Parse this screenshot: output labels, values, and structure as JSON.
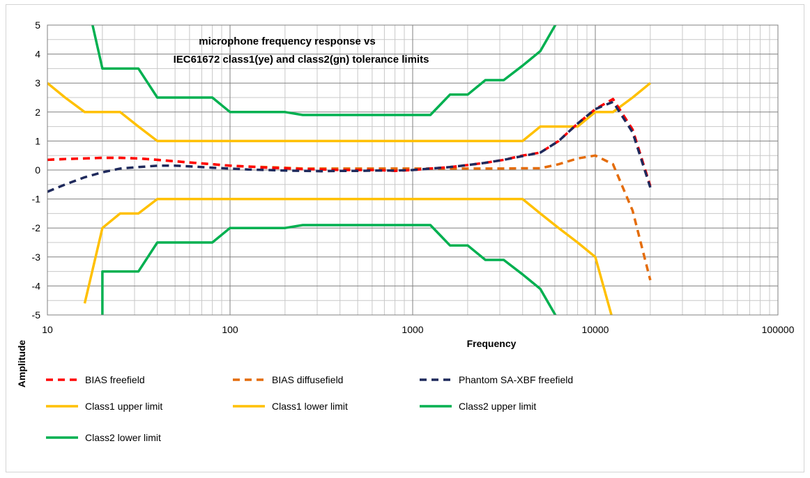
{
  "chart_data": {
    "type": "line",
    "title_lines": [
      "microphone frequency response vs",
      "IEC61672 class1(ye) and class2(gn) tolerance limits"
    ],
    "xlabel": "Frequency",
    "ylabel": "Amplitude",
    "xscale": "log",
    "xlim": [
      10,
      100000
    ],
    "ylim": [
      -5,
      5
    ],
    "x_ticks": [
      10,
      100,
      1000,
      10000,
      100000
    ],
    "x_tick_labels": [
      "10",
      "100",
      "1000",
      "10000",
      "100000"
    ],
    "y_ticks": [
      5,
      4,
      3,
      2,
      1,
      0,
      -1,
      -2,
      -3,
      -4,
      -5
    ],
    "y_tick_labels": [
      "5",
      "4",
      "3",
      "2",
      "1",
      "0",
      "-1",
      "-2",
      "-3",
      "-4",
      "-5"
    ],
    "grid": true,
    "legend_position": "bottom",
    "series": [
      {
        "name": "BIAS freefield",
        "color": "#ff0000",
        "dash": true,
        "points": [
          [
            10,
            0.35
          ],
          [
            12.5,
            0.38
          ],
          [
            16,
            0.4
          ],
          [
            20,
            0.42
          ],
          [
            25,
            0.42
          ],
          [
            31.5,
            0.4
          ],
          [
            40,
            0.35
          ],
          [
            50,
            0.3
          ],
          [
            63,
            0.25
          ],
          [
            80,
            0.2
          ],
          [
            100,
            0.15
          ],
          [
            125,
            0.12
          ],
          [
            160,
            0.08
          ],
          [
            200,
            0.06
          ],
          [
            250,
            0.03
          ],
          [
            315,
            0.02
          ],
          [
            400,
            0
          ],
          [
            500,
            0
          ],
          [
            630,
            0
          ],
          [
            800,
            -0.03
          ],
          [
            1000,
            0
          ],
          [
            1250,
            0.05
          ],
          [
            1600,
            0.1
          ],
          [
            2000,
            0.17
          ],
          [
            2500,
            0.25
          ],
          [
            3150,
            0.35
          ],
          [
            4000,
            0.5
          ],
          [
            5000,
            0.6
          ],
          [
            6300,
            1.0
          ],
          [
            8000,
            1.6
          ],
          [
            10000,
            2.1
          ],
          [
            12500,
            2.45
          ],
          [
            16000,
            1.4
          ],
          [
            20000,
            -0.55
          ]
        ]
      },
      {
        "name": "BIAS diffusefield",
        "color": "#e46c0a",
        "dash": true,
        "points": [
          [
            10,
            0.35
          ],
          [
            12.5,
            0.38
          ],
          [
            16,
            0.4
          ],
          [
            20,
            0.42
          ],
          [
            25,
            0.42
          ],
          [
            31.5,
            0.4
          ],
          [
            40,
            0.35
          ],
          [
            50,
            0.3
          ],
          [
            63,
            0.25
          ],
          [
            80,
            0.2
          ],
          [
            100,
            0.15
          ],
          [
            125,
            0.12
          ],
          [
            160,
            0.1
          ],
          [
            200,
            0.08
          ],
          [
            250,
            0.05
          ],
          [
            315,
            0.05
          ],
          [
            400,
            0.05
          ],
          [
            500,
            0.05
          ],
          [
            630,
            0.05
          ],
          [
            800,
            0.05
          ],
          [
            1000,
            0.05
          ],
          [
            1250,
            0.05
          ],
          [
            1600,
            0.05
          ],
          [
            2000,
            0.05
          ],
          [
            2500,
            0.05
          ],
          [
            3150,
            0.05
          ],
          [
            4000,
            0.06
          ],
          [
            5000,
            0.06
          ],
          [
            6300,
            0.2
          ],
          [
            8000,
            0.4
          ],
          [
            10000,
            0.5
          ],
          [
            12500,
            0.2
          ],
          [
            16000,
            -1.4
          ],
          [
            20000,
            -3.8
          ]
        ]
      },
      {
        "name": "Phantom SA-XBF freefield",
        "color": "#1f2a5c",
        "dash": true,
        "points": [
          [
            10,
            -0.75
          ],
          [
            12.5,
            -0.5
          ],
          [
            16,
            -0.25
          ],
          [
            20,
            -0.08
          ],
          [
            25,
            0.05
          ],
          [
            31.5,
            0.1
          ],
          [
            40,
            0.15
          ],
          [
            50,
            0.15
          ],
          [
            63,
            0.12
          ],
          [
            80,
            0.08
          ],
          [
            100,
            0.05
          ],
          [
            125,
            0.02
          ],
          [
            160,
            0
          ],
          [
            200,
            -0.02
          ],
          [
            250,
            -0.03
          ],
          [
            315,
            -0.04
          ],
          [
            400,
            -0.03
          ],
          [
            500,
            -0.03
          ],
          [
            630,
            -0.02
          ],
          [
            800,
            -0.02
          ],
          [
            1000,
            0
          ],
          [
            1250,
            0.05
          ],
          [
            1600,
            0.1
          ],
          [
            2000,
            0.17
          ],
          [
            2500,
            0.25
          ],
          [
            3150,
            0.35
          ],
          [
            4000,
            0.48
          ],
          [
            5000,
            0.6
          ],
          [
            6300,
            1.0
          ],
          [
            8000,
            1.6
          ],
          [
            10000,
            2.1
          ],
          [
            12500,
            2.35
          ],
          [
            16000,
            1.3
          ],
          [
            20000,
            -0.6
          ]
        ]
      },
      {
        "name": "Class1 upper limit",
        "color": "#ffc000",
        "dash": false,
        "points": [
          [
            10,
            3
          ],
          [
            12.5,
            2.5
          ],
          [
            16,
            2
          ],
          [
            20,
            2
          ],
          [
            25,
            2
          ],
          [
            31.5,
            1.5
          ],
          [
            40,
            1
          ],
          [
            50,
            1
          ],
          [
            63,
            1
          ],
          [
            80,
            1
          ],
          [
            100,
            1
          ],
          [
            125,
            1
          ],
          [
            160,
            1
          ],
          [
            200,
            1
          ],
          [
            250,
            1
          ],
          [
            315,
            1
          ],
          [
            400,
            1
          ],
          [
            500,
            1
          ],
          [
            630,
            1
          ],
          [
            800,
            1
          ],
          [
            1000,
            1
          ],
          [
            1250,
            1
          ],
          [
            1600,
            1
          ],
          [
            2000,
            1
          ],
          [
            2500,
            1
          ],
          [
            3150,
            1
          ],
          [
            4000,
            1
          ],
          [
            5000,
            1.5
          ],
          [
            6300,
            1.5
          ],
          [
            8000,
            1.5
          ],
          [
            10000,
            2
          ],
          [
            12500,
            2
          ],
          [
            16000,
            2.5
          ],
          [
            20000,
            3
          ]
        ]
      },
      {
        "name": "Class1 lower limit",
        "color": "#ffc000",
        "dash": false,
        "points": [
          [
            16,
            -4.6
          ],
          [
            20,
            -2
          ],
          [
            25,
            -1.5
          ],
          [
            31.5,
            -1.5
          ],
          [
            40,
            -1
          ],
          [
            50,
            -1
          ],
          [
            63,
            -1
          ],
          [
            80,
            -1
          ],
          [
            100,
            -1
          ],
          [
            125,
            -1
          ],
          [
            160,
            -1
          ],
          [
            200,
            -1
          ],
          [
            250,
            -1
          ],
          [
            315,
            -1
          ],
          [
            400,
            -1
          ],
          [
            500,
            -1
          ],
          [
            630,
            -1
          ],
          [
            800,
            -1
          ],
          [
            1000,
            -1
          ],
          [
            1250,
            -1
          ],
          [
            1600,
            -1
          ],
          [
            2000,
            -1
          ],
          [
            2500,
            -1
          ],
          [
            3150,
            -1
          ],
          [
            4000,
            -1
          ],
          [
            5000,
            -1.5
          ],
          [
            6300,
            -2
          ],
          [
            8000,
            -2.5
          ],
          [
            10000,
            -3
          ],
          [
            12500,
            -5.2
          ]
        ]
      },
      {
        "name": "Class2 upper limit",
        "color": "#00b050",
        "dash": false,
        "points": [
          [
            16,
            6.2
          ],
          [
            20,
            3.5
          ],
          [
            25,
            3.5
          ],
          [
            31.5,
            3.5
          ],
          [
            40,
            2.5
          ],
          [
            50,
            2.5
          ],
          [
            63,
            2.5
          ],
          [
            80,
            2.5
          ],
          [
            100,
            2
          ],
          [
            125,
            2
          ],
          [
            160,
            2
          ],
          [
            200,
            2
          ],
          [
            250,
            1.9
          ],
          [
            315,
            1.9
          ],
          [
            400,
            1.9
          ],
          [
            500,
            1.9
          ],
          [
            630,
            1.9
          ],
          [
            800,
            1.9
          ],
          [
            1000,
            1.9
          ],
          [
            1250,
            1.9
          ],
          [
            1600,
            2.6
          ],
          [
            2000,
            2.6
          ],
          [
            2500,
            3.1
          ],
          [
            3150,
            3.1
          ],
          [
            4000,
            3.6
          ],
          [
            5000,
            4.1
          ],
          [
            6300,
            5.2
          ]
        ]
      },
      {
        "name": "Class2 lower limit",
        "color": "#00b050",
        "dash": false,
        "points": [
          [
            20,
            -5.2
          ],
          [
            20,
            -3.5
          ],
          [
            25,
            -3.5
          ],
          [
            31.5,
            -3.5
          ],
          [
            40,
            -2.5
          ],
          [
            50,
            -2.5
          ],
          [
            63,
            -2.5
          ],
          [
            80,
            -2.5
          ],
          [
            100,
            -2
          ],
          [
            125,
            -2
          ],
          [
            160,
            -2
          ],
          [
            200,
            -2
          ],
          [
            250,
            -1.9
          ],
          [
            315,
            -1.9
          ],
          [
            400,
            -1.9
          ],
          [
            500,
            -1.9
          ],
          [
            630,
            -1.9
          ],
          [
            800,
            -1.9
          ],
          [
            1000,
            -1.9
          ],
          [
            1250,
            -1.9
          ],
          [
            1600,
            -2.6
          ],
          [
            2000,
            -2.6
          ],
          [
            2500,
            -3.1
          ],
          [
            3150,
            -3.1
          ],
          [
            4000,
            -3.6
          ],
          [
            5000,
            -4.1
          ],
          [
            6300,
            -5.2
          ]
        ]
      }
    ]
  }
}
